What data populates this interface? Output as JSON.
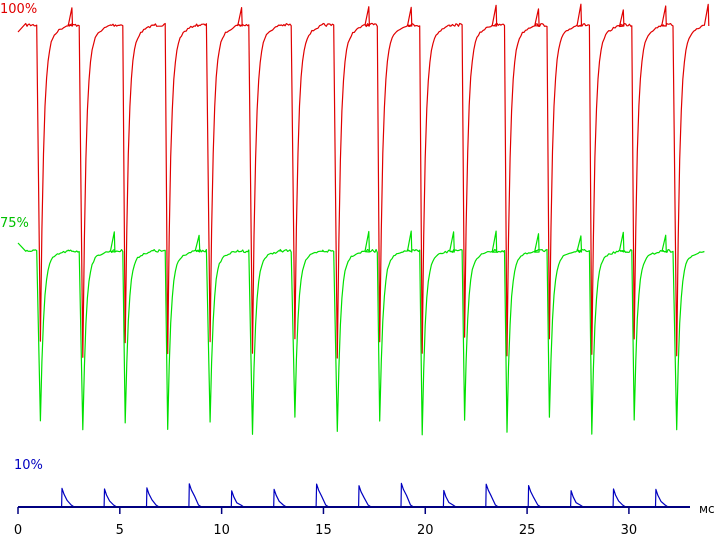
{
  "chart_data": {
    "type": "line",
    "title": "",
    "xlabel": "мс",
    "ylabel": "",
    "xlim": [
      0,
      33
    ],
    "x_ticks": [
      0,
      5,
      10,
      15,
      20,
      25,
      30
    ],
    "x_tick_labels": [
      "0",
      "5",
      "10",
      "15",
      "20",
      "25",
      "30"
    ],
    "grid": false,
    "period_ms": 2.083,
    "first_pulse_ms": 0.98,
    "pulse_count": 16,
    "series": [
      {
        "name": "100%",
        "color": "#e00000",
        "high_level": 0.98,
        "low_level": 0.0
      },
      {
        "name": "75%",
        "color": "#00e000",
        "high_level": 0.98,
        "low_level": 0.0
      },
      {
        "name": "10%",
        "color": "#0000c0",
        "high_level": 1.0,
        "low_level": 0.0
      }
    ]
  }
}
